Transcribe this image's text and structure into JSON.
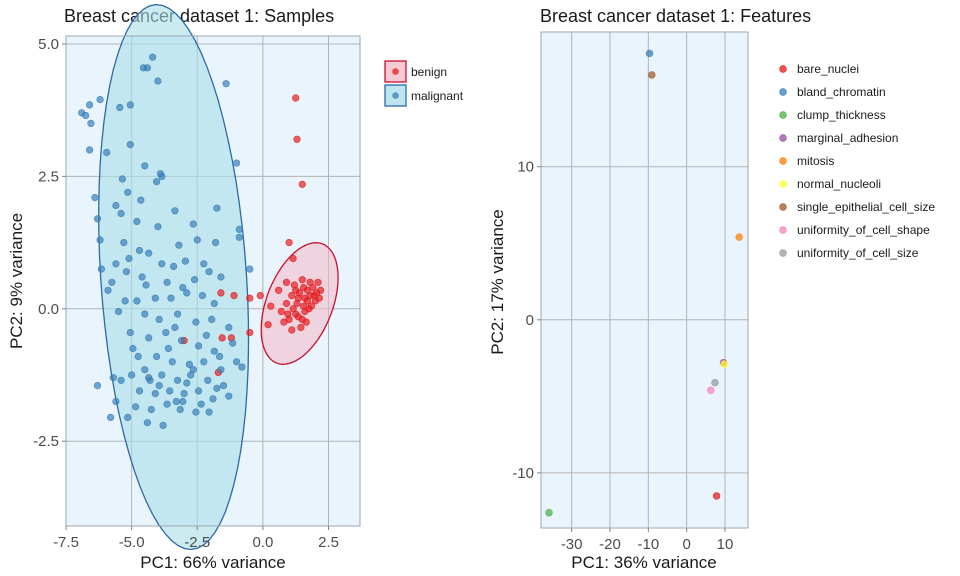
{
  "chart_data": [
    {
      "type": "scatter",
      "title": "Breast cancer dataset 1: Samples",
      "xlabel": "PC1: 66% variance",
      "ylabel": "PC2: 9% variance",
      "xlim": [
        -7.5,
        3.7
      ],
      "ylim": [
        -4.1,
        5.15
      ],
      "xticks": [
        "-7.5",
        "-5.0",
        "-2.5",
        "0.0",
        "2.5"
      ],
      "xtick_values": [
        -7.5,
        -5.0,
        -2.5,
        0.0,
        2.5
      ],
      "yticks": [
        "-2.5",
        "0.0",
        "2.5",
        "5.0"
      ],
      "ytick_values": [
        -2.5,
        0.0,
        2.5,
        5.0
      ],
      "grid": true,
      "legend_position": "right",
      "series": [
        {
          "name": "benign",
          "color": "#e41a1c",
          "ellipse": {
            "cx": 1.4,
            "cy": 0.1,
            "rx": 1.6,
            "ry": 0.95,
            "angle_deg": 30
          },
          "points": [
            [
              1.25,
              3.98
            ],
            [
              1.3,
              3.2
            ],
            [
              1.5,
              2.35
            ],
            [
              1.0,
              1.25
            ],
            [
              1.15,
              0.95
            ],
            [
              -0.1,
              0.25
            ],
            [
              -0.5,
              0.2
            ],
            [
              -1.1,
              0.25
            ],
            [
              -1.6,
              0.3
            ],
            [
              -0.5,
              -0.45
            ],
            [
              -1.2,
              -0.55
            ],
            [
              -1.55,
              -0.55
            ],
            [
              -1.7,
              -1.2
            ],
            [
              -3.0,
              -0.6
            ],
            [
              0.2,
              -0.3
            ],
            [
              0.3,
              0.05
            ],
            [
              0.6,
              0.35
            ],
            [
              0.7,
              -0.05
            ],
            [
              0.9,
              0.5
            ],
            [
              0.9,
              0.1
            ],
            [
              1.0,
              -0.2
            ],
            [
              1.1,
              0.25
            ],
            [
              1.2,
              0.45
            ],
            [
              1.3,
              0.1
            ],
            [
              1.35,
              -0.15
            ],
            [
              1.4,
              0.3
            ],
            [
              1.5,
              0.55
            ],
            [
              1.55,
              0.05
            ],
            [
              1.6,
              0.2
            ],
            [
              1.7,
              0.35
            ],
            [
              1.75,
              0.0
            ],
            [
              1.8,
              0.25
            ],
            [
              1.9,
              0.4
            ],
            [
              2.0,
              0.15
            ],
            [
              2.05,
              0.3
            ],
            [
              2.1,
              0.5
            ],
            [
              2.15,
              0.2
            ],
            [
              1.65,
              -0.25
            ],
            [
              1.45,
              -0.35
            ],
            [
              1.1,
              -0.4
            ],
            [
              0.8,
              -0.25
            ],
            [
              1.25,
              -0.1
            ],
            [
              1.55,
              0.4
            ],
            [
              1.85,
              0.05
            ],
            [
              1.95,
              0.25
            ],
            [
              1.7,
              0.15
            ],
            [
              1.35,
              0.2
            ],
            [
              1.15,
              0.0
            ],
            [
              0.95,
              -0.1
            ],
            [
              1.6,
              -0.05
            ],
            [
              1.8,
              0.5
            ],
            [
              2.2,
              0.35
            ],
            [
              1.5,
              -0.2
            ],
            [
              1.25,
              0.35
            ]
          ]
        },
        {
          "name": "malignant",
          "color": "#377eb8",
          "ellipse": {
            "cx": -3.4,
            "cy": 0.6,
            "rx": 5.2,
            "ry": 2.75,
            "angle_deg": -80
          },
          "points": [
            [
              -4.2,
              4.75
            ],
            [
              -4.4,
              4.55
            ],
            [
              -4.55,
              4.55
            ],
            [
              -4.0,
              4.3
            ],
            [
              -1.4,
              4.25
            ],
            [
              -6.9,
              3.7
            ],
            [
              -6.75,
              3.65
            ],
            [
              -6.6,
              3.85
            ],
            [
              -6.2,
              3.95
            ],
            [
              -5.45,
              3.8
            ],
            [
              -5.05,
              3.85
            ],
            [
              -6.55,
              3.5
            ],
            [
              -5.05,
              3.1
            ],
            [
              -6.6,
              3.0
            ],
            [
              -5.95,
              2.95
            ],
            [
              -4.5,
              2.7
            ],
            [
              -3.85,
              2.5
            ],
            [
              -1.0,
              2.75
            ],
            [
              -5.35,
              2.45
            ],
            [
              -4.05,
              2.4
            ],
            [
              -3.9,
              2.55
            ],
            [
              -5.15,
              2.2
            ],
            [
              -4.65,
              2.05
            ],
            [
              -6.4,
              2.1
            ],
            [
              -5.6,
              1.95
            ],
            [
              -5.4,
              1.8
            ],
            [
              -3.35,
              1.85
            ],
            [
              -1.75,
              1.9
            ],
            [
              -6.3,
              1.7
            ],
            [
              -4.8,
              1.65
            ],
            [
              -4.0,
              1.55
            ],
            [
              -2.65,
              1.6
            ],
            [
              -1.8,
              1.25
            ],
            [
              -0.9,
              1.5
            ],
            [
              -6.2,
              1.3
            ],
            [
              -5.3,
              1.25
            ],
            [
              -4.7,
              1.1
            ],
            [
              -4.35,
              1.05
            ],
            [
              -3.2,
              1.2
            ],
            [
              -2.5,
              1.3
            ],
            [
              -0.9,
              1.35
            ],
            [
              -5.6,
              0.85
            ],
            [
              -5.1,
              0.95
            ],
            [
              -3.85,
              0.85
            ],
            [
              -3.4,
              0.8
            ],
            [
              -2.95,
              0.9
            ],
            [
              -2.25,
              0.85
            ],
            [
              -0.5,
              0.75
            ],
            [
              -6.15,
              0.75
            ],
            [
              -5.2,
              0.7
            ],
            [
              -4.6,
              0.6
            ],
            [
              -3.65,
              0.5
            ],
            [
              -2.6,
              0.55
            ],
            [
              -1.6,
              0.6
            ],
            [
              -5.9,
              0.35
            ],
            [
              -5.25,
              0.15
            ],
            [
              -4.8,
              0.15
            ],
            [
              -4.1,
              0.2
            ],
            [
              -3.5,
              0.2
            ],
            [
              -2.9,
              0.3
            ],
            [
              -2.3,
              0.25
            ],
            [
              -1.85,
              0.1
            ],
            [
              -5.5,
              -0.05
            ],
            [
              -4.5,
              -0.1
            ],
            [
              -3.95,
              -0.2
            ],
            [
              -3.25,
              -0.1
            ],
            [
              -2.55,
              -0.25
            ],
            [
              -1.95,
              -0.2
            ],
            [
              -1.3,
              -0.35
            ],
            [
              -5.05,
              -0.45
            ],
            [
              -4.35,
              -0.55
            ],
            [
              -3.7,
              -0.45
            ],
            [
              -3.1,
              -0.6
            ],
            [
              -2.45,
              -0.7
            ],
            [
              -1.85,
              -0.8
            ],
            [
              -1.15,
              -0.65
            ],
            [
              -4.75,
              -0.9
            ],
            [
              -4.05,
              -0.9
            ],
            [
              -3.45,
              -1.0
            ],
            [
              -2.8,
              -1.05
            ],
            [
              -2.25,
              -1.0
            ],
            [
              -1.6,
              -1.15
            ],
            [
              -1.0,
              -1.0
            ],
            [
              -5.0,
              -1.25
            ],
            [
              -4.35,
              -1.3
            ],
            [
              -3.85,
              -1.25
            ],
            [
              -3.25,
              -1.35
            ],
            [
              -2.75,
              -1.25
            ],
            [
              -2.1,
              -1.35
            ],
            [
              -1.5,
              -1.45
            ],
            [
              -0.8,
              -1.1
            ],
            [
              -5.7,
              -1.3
            ],
            [
              -4.7,
              -1.55
            ],
            [
              -4.1,
              -1.6
            ],
            [
              -3.55,
              -1.55
            ],
            [
              -3.0,
              -1.6
            ],
            [
              -2.45,
              -1.55
            ],
            [
              -1.9,
              -1.7
            ],
            [
              -1.3,
              -1.65
            ],
            [
              -6.3,
              -1.45
            ],
            [
              -5.6,
              -1.75
            ],
            [
              -4.85,
              -1.85
            ],
            [
              -4.25,
              -1.9
            ],
            [
              -3.65,
              -1.8
            ],
            [
              -3.15,
              -1.9
            ],
            [
              -2.55,
              -1.95
            ],
            [
              -2.05,
              -1.95
            ],
            [
              -5.4,
              -1.35
            ],
            [
              -4.5,
              -1.15
            ],
            [
              -3.95,
              -1.45
            ],
            [
              -3.3,
              -1.75
            ],
            [
              -2.9,
              -1.4
            ],
            [
              -2.35,
              -1.8
            ],
            [
              -1.75,
              -1.5
            ],
            [
              -4.3,
              -1.35
            ],
            [
              -5.8,
              -2.05
            ],
            [
              -5.15,
              -2.05
            ],
            [
              -4.4,
              -2.15
            ],
            [
              -3.8,
              -2.2
            ],
            [
              -3.05,
              -1.75
            ],
            [
              -2.65,
              -1.15
            ],
            [
              -4.95,
              -0.75
            ],
            [
              -3.6,
              -0.75
            ],
            [
              -2.15,
              -0.5
            ],
            [
              -1.65,
              -0.9
            ],
            [
              -3.35,
              -0.35
            ],
            [
              -4.45,
              0.45
            ],
            [
              -3.05,
              0.4
            ],
            [
              -2.05,
              0.7
            ],
            [
              -5.75,
              0.5
            ]
          ]
        }
      ]
    },
    {
      "type": "scatter",
      "title": "Breast cancer dataset 1: Features",
      "xlabel": "PC1: 36% variance",
      "ylabel": "PC2: 17% variance",
      "xlim": [
        -38,
        16
      ],
      "ylim": [
        -13.6,
        18.8
      ],
      "xticks": [
        "-30",
        "-20",
        "-10",
        "0",
        "10"
      ],
      "xtick_values": [
        -30,
        -20,
        -10,
        0,
        10
      ],
      "yticks": [
        "-10",
        "0",
        "10"
      ],
      "ytick_values": [
        -10,
        0,
        10
      ],
      "grid": true,
      "legend_position": "right",
      "series": [
        {
          "name": "bare_nuclei",
          "color": "#e41a1c",
          "points": [
            [
              7.8,
              -11.5
            ]
          ]
        },
        {
          "name": "bland_chromatin",
          "color": "#377eb8",
          "points": [
            [
              -9.7,
              17.4
            ]
          ]
        },
        {
          "name": "clump_thickness",
          "color": "#4daf4a",
          "points": [
            [
              -35.9,
              -12.6
            ]
          ]
        },
        {
          "name": "marginal_adhesion",
          "color": "#984ea3",
          "points": [
            [
              9.6,
              -2.8
            ]
          ]
        },
        {
          "name": "mitosis",
          "color": "#ff7f00",
          "points": [
            [
              13.7,
              5.4
            ]
          ]
        },
        {
          "name": "normal_nucleoli",
          "color": "#ffff33",
          "points": [
            [
              9.8,
              -2.9
            ]
          ]
        },
        {
          "name": "single_epithelial_cell_size",
          "color": "#a65628",
          "points": [
            [
              -9.1,
              16.0
            ]
          ]
        },
        {
          "name": "uniformity_of_cell_shape",
          "color": "#f781bf",
          "points": [
            [
              6.3,
              -4.6
            ]
          ]
        },
        {
          "name": "uniformity_of_cell_size",
          "color": "#999999",
          "points": [
            [
              7.4,
              -4.1
            ]
          ]
        }
      ]
    }
  ]
}
